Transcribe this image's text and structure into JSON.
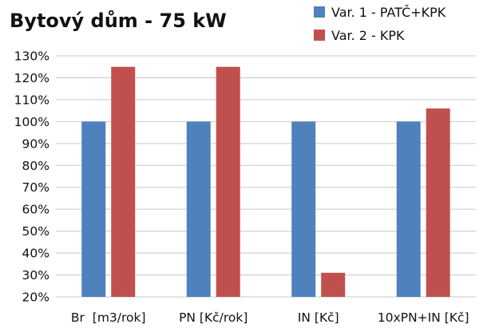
{
  "chart_data": {
    "type": "bar",
    "title": "Bytový dům - 75 kW",
    "categories": [
      "Br  [m3/rok]",
      "PN [Kč/rok]",
      "IN [Kč]",
      "10xPN+IN [Kč]"
    ],
    "series": [
      {
        "name": "Var. 1 - PATČ+KPK",
        "color": "#4f81bd",
        "values": [
          100,
          100,
          100,
          100
        ]
      },
      {
        "name": "Var. 2 - KPK",
        "color": "#c0504d",
        "values": [
          125,
          125,
          31,
          106
        ]
      }
    ],
    "ylim": [
      20,
      130
    ],
    "yticks": [
      20,
      30,
      40,
      50,
      60,
      70,
      80,
      90,
      100,
      110,
      120,
      130
    ],
    "ytick_labels": [
      "20%",
      "30%",
      "40%",
      "50%",
      "60%",
      "70%",
      "80%",
      "90%",
      "100%",
      "110%",
      "120%",
      "130%"
    ],
    "grid": true,
    "legend_position": "top-right"
  }
}
